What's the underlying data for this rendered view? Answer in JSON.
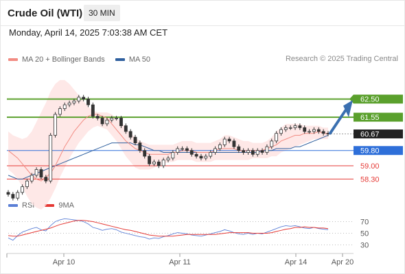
{
  "header": {
    "title": "Crude Oil (WTI)",
    "timeframe": "30 MIN",
    "datetime": "Monday, April 14, 2025 7:03:38 AM CET"
  },
  "legend": {
    "ma20_label": "MA 20 + Bollinger Bands",
    "ma20_color": "#f28b82",
    "ma50_label": "MA 50",
    "ma50_color": "#2e5f9e",
    "credit": "Research © 2025 Trading Central",
    "rsi_label": "RSI",
    "rsi_color": "#5b7fd6",
    "ma9_label": "9MA",
    "ma9_color": "#e53935"
  },
  "chart_data": {
    "type": "candlestick",
    "x_ticks": [
      "Apr 10",
      "Apr 11",
      "Apr 14",
      "Apr 20"
    ],
    "price_range": [
      57.2,
      63.1
    ],
    "levels": [
      {
        "label": "62.50",
        "value": 62.5,
        "kind": "resistance",
        "color": "#5aa02c"
      },
      {
        "label": "61.55",
        "value": 61.55,
        "kind": "resistance",
        "color": "#5aa02c"
      },
      {
        "label": "60.67",
        "value": 60.67,
        "kind": "current",
        "color": "#222222"
      },
      {
        "label": "59.80",
        "value": 59.8,
        "kind": "pivot",
        "color": "#2e6fd9"
      },
      {
        "label": "59.00",
        "value": 59.0,
        "kind": "support",
        "color": "#e53935"
      },
      {
        "label": "58.30",
        "value": 58.3,
        "kind": "support",
        "color": "#e53935"
      }
    ],
    "close_series": [
      57.5,
      57.3,
      57.6,
      57.9,
      58.2,
      58.5,
      58.8,
      58.4,
      58.2,
      60.6,
      61.7,
      62.0,
      62.2,
      62.3,
      62.4,
      62.6,
      62.5,
      62.2,
      61.6,
      61.5,
      61.2,
      61.4,
      61.5,
      61.5,
      61.1,
      60.8,
      60.5,
      60.2,
      59.8,
      59.5,
      59.1,
      59.2,
      59.0,
      59.3,
      59.4,
      59.7,
      59.9,
      59.9,
      59.8,
      59.6,
      59.5,
      59.4,
      59.5,
      59.7,
      59.9,
      60.1,
      60.4,
      60.3,
      60.0,
      59.8,
      59.7,
      59.8,
      59.6,
      59.8,
      59.7,
      60.0,
      60.3,
      60.7,
      60.9,
      61.0,
      61.0,
      61.1,
      61.0,
      60.8,
      60.8,
      60.9,
      60.8,
      60.7,
      60.67
    ],
    "ma20_series": [
      59.8,
      59.6,
      59.4,
      59.1,
      58.8,
      58.5,
      58.3,
      58.2,
      58.4,
      58.6,
      59.0,
      59.5,
      60.0,
      60.4,
      60.8,
      61.1,
      61.4,
      61.6,
      61.7,
      61.7,
      61.6,
      61.5,
      61.2,
      60.9,
      60.6,
      60.3,
      60.1,
      59.9,
      59.8,
      59.7,
      59.6,
      59.6,
      59.6,
      59.6,
      59.6,
      59.7,
      59.7,
      59.8,
      59.8,
      59.8,
      59.7,
      59.7,
      59.7,
      59.7,
      59.8,
      59.9,
      59.9,
      59.9,
      59.9,
      59.8,
      59.8,
      59.8,
      59.8,
      59.8,
      59.8,
      59.9,
      60.0,
      60.1,
      60.3,
      60.4,
      60.5,
      60.6,
      60.6,
      60.7,
      60.7,
      60.7,
      60.8,
      60.7,
      60.7
    ],
    "ma50_series": [
      58.5,
      58.4,
      58.3,
      58.3,
      58.4,
      58.5,
      58.6,
      58.7,
      58.8,
      58.9,
      59.0,
      59.1,
      59.2,
      59.3,
      59.4,
      59.5,
      59.6,
      59.7,
      59.8,
      59.9,
      60.0,
      60.1,
      60.2,
      60.2,
      60.2,
      60.2,
      60.2,
      60.1,
      60.1,
      60.0,
      59.9,
      59.8,
      59.8,
      59.7,
      59.7,
      59.7,
      59.7,
      59.7,
      59.7,
      59.7,
      59.7,
      59.7,
      59.7,
      59.7,
      59.7,
      59.7,
      59.7,
      59.7,
      59.7,
      59.7,
      59.7,
      59.7,
      59.7,
      59.7,
      59.8,
      59.8,
      59.8,
      59.9,
      59.9,
      59.9,
      59.9,
      60.0,
      60.0,
      60.1,
      60.2,
      60.3,
      60.4,
      60.5,
      60.6
    ],
    "bb_upper_series": [
      60.8,
      60.6,
      60.5,
      60.4,
      60.5,
      60.8,
      61.3,
      61.8,
      62.3,
      62.9,
      63.3,
      63.5,
      63.5,
      63.3,
      63.0,
      62.7,
      62.4,
      62.1,
      61.9,
      61.8,
      61.8,
      61.8,
      61.7,
      61.5,
      61.3,
      61.0,
      60.7,
      60.5,
      60.3,
      60.2,
      60.1,
      60.1,
      60.1,
      60.1,
      60.1,
      60.1,
      60.2,
      60.3,
      60.3,
      60.3,
      60.2,
      60.2,
      60.2,
      60.2,
      60.3,
      60.4,
      60.6,
      60.6,
      60.5,
      60.4,
      60.3,
      60.3,
      60.2,
      60.2,
      60.2,
      60.3,
      60.5,
      60.8,
      61.0,
      61.2,
      61.2,
      61.2,
      61.2,
      61.1,
      61.1,
      61.1,
      61.1,
      61.0,
      61.0
    ],
    "bb_lower_series": [
      58.8,
      58.6,
      58.3,
      57.9,
      57.4,
      57.0,
      56.8,
      56.7,
      56.9,
      57.3,
      57.8,
      58.4,
      58.9,
      59.4,
      59.8,
      60.2,
      60.5,
      60.8,
      61.0,
      61.1,
      61.0,
      60.9,
      60.6,
      60.3,
      59.9,
      59.5,
      59.2,
      58.9,
      58.8,
      58.8,
      58.8,
      58.9,
      59.0,
      59.1,
      59.2,
      59.2,
      59.3,
      59.3,
      59.3,
      59.3,
      59.2,
      59.2,
      59.2,
      59.2,
      59.3,
      59.3,
      59.3,
      59.3,
      59.3,
      59.3,
      59.3,
      59.3,
      59.4,
      59.4,
      59.4,
      59.4,
      59.5,
      59.5,
      59.7,
      59.8,
      59.9,
      60.0,
      60.1,
      60.2,
      60.3,
      60.4,
      60.4,
      60.4,
      60.4
    ],
    "rsi_levels": [
      {
        "label": "70",
        "value": 70
      },
      {
        "label": "50",
        "value": 50
      },
      {
        "label": "30",
        "value": 30
      }
    ],
    "rsi_range": [
      20,
      80
    ],
    "rsi_series": [
      42,
      38,
      46,
      52,
      55,
      58,
      60,
      56,
      54,
      63,
      70,
      73,
      75,
      74,
      73,
      72,
      70,
      66,
      60,
      58,
      55,
      57,
      58,
      56,
      52,
      50,
      48,
      46,
      44,
      43,
      40,
      42,
      41,
      44,
      46,
      49,
      51,
      50,
      49,
      47,
      46,
      45,
      47,
      49,
      51,
      53,
      56,
      54,
      51,
      49,
      48,
      50,
      48,
      50,
      49,
      52,
      55,
      58,
      61,
      63,
      62,
      63,
      61,
      59,
      58,
      60,
      58,
      57,
      56
    ],
    "ma9_series": [
      46,
      45,
      45,
      47,
      49,
      51,
      53,
      55,
      57,
      59,
      62,
      65,
      67,
      69,
      71,
      72,
      72,
      71,
      70,
      68,
      66,
      64,
      62,
      60,
      58,
      56,
      55,
      53,
      51,
      49,
      47,
      46,
      45,
      45,
      45,
      45,
      46,
      47,
      48,
      48,
      48,
      48,
      48,
      48,
      48,
      49,
      50,
      51,
      51,
      51,
      51,
      51,
      50,
      50,
      50,
      50,
      51,
      53,
      55,
      57,
      58,
      60,
      60,
      61,
      60,
      60,
      59,
      59,
      58
    ]
  }
}
